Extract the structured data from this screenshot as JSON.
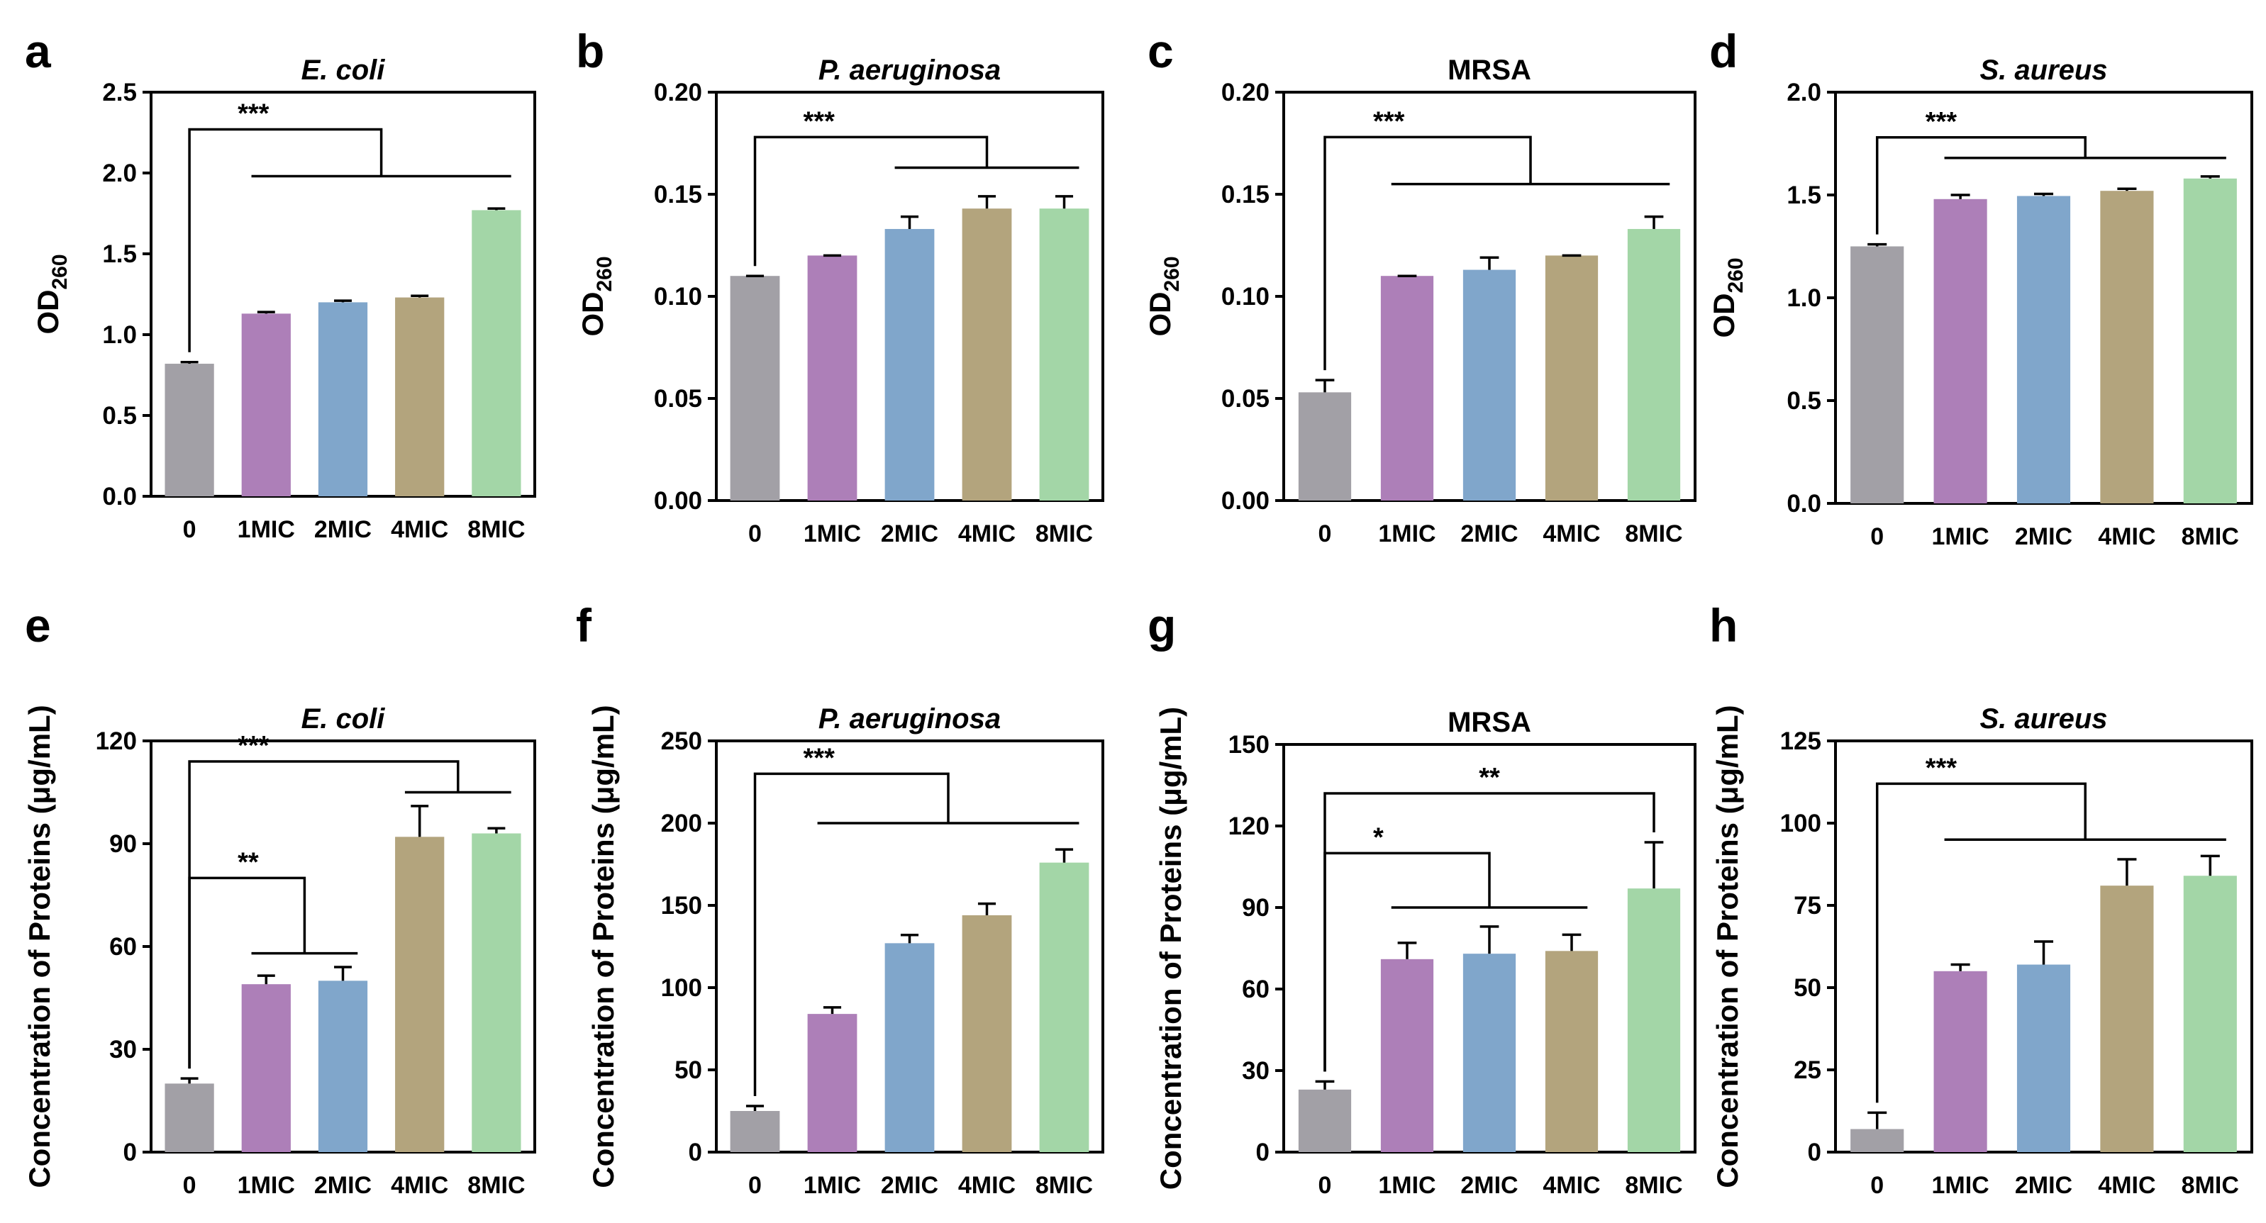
{
  "colors": [
    "#a2a0a6",
    "#ad7fb8",
    "#80a6cb",
    "#b3a47d",
    "#a3d6a7"
  ],
  "chart_data": [
    {
      "type": "bar",
      "panel": "a",
      "title": "E. coli",
      "title_italic": true,
      "ylabel": "OD",
      "ylabel_sub": "260",
      "categories": [
        "0",
        "1MIC",
        "2MIC",
        "4MIC",
        "8MIC"
      ],
      "values": [
        0.82,
        1.13,
        1.2,
        1.23,
        1.77
      ],
      "errors": [
        0.01,
        0.01,
        0.01,
        0.01,
        0.01
      ],
      "ylim": [
        0,
        2.5
      ],
      "yticks": [
        {
          "v": 0,
          "label": "0.0"
        },
        {
          "v": 0.5,
          "label": "0.5"
        },
        {
          "v": 1,
          "label": "1.0"
        },
        {
          "v": 1.5,
          "label": "1.5"
        },
        {
          "v": 2,
          "label": "2.0"
        },
        {
          "v": 2.5,
          "label": "2.5"
        }
      ],
      "annotations": [
        {
          "label": "***",
          "from": 0,
          "to": [
            1,
            4
          ],
          "y": 2.27,
          "yg": 1.98
        }
      ]
    },
    {
      "type": "bar",
      "panel": "b",
      "title": "P. aeruginosa",
      "title_italic": true,
      "ylabel": "OD",
      "ylabel_sub": "260",
      "categories": [
        "0",
        "1MIC",
        "2MIC",
        "4MIC",
        "8MIC"
      ],
      "values": [
        0.11,
        0.12,
        0.133,
        0.143,
        0.143
      ],
      "errors": [
        0,
        0,
        0.006,
        0.006,
        0.006
      ],
      "ylim": [
        0,
        0.2
      ],
      "yticks": [
        {
          "v": 0,
          "label": "0.00"
        },
        {
          "v": 0.05,
          "label": "0.05"
        },
        {
          "v": 0.1,
          "label": "0.10"
        },
        {
          "v": 0.15,
          "label": "0.15"
        },
        {
          "v": 0.2,
          "label": "0.20"
        }
      ],
      "annotations": [
        {
          "label": "***",
          "from": 0,
          "to": [
            2,
            4
          ],
          "y": 0.178,
          "yg": 0.163
        }
      ]
    },
    {
      "type": "bar",
      "panel": "c",
      "title": "MRSA",
      "title_italic": false,
      "ylabel": "OD",
      "ylabel_sub": "260",
      "categories": [
        "0",
        "1MIC",
        "2MIC",
        "4MIC",
        "8MIC"
      ],
      "values": [
        0.053,
        0.11,
        0.113,
        0.12,
        0.133
      ],
      "errors": [
        0.006,
        0,
        0.006,
        0,
        0.006
      ],
      "ylim": [
        0,
        0.2
      ],
      "yticks": [
        {
          "v": 0,
          "label": "0.00"
        },
        {
          "v": 0.05,
          "label": "0.05"
        },
        {
          "v": 0.1,
          "label": "0.10"
        },
        {
          "v": 0.15,
          "label": "0.15"
        },
        {
          "v": 0.2,
          "label": "0.20"
        }
      ],
      "annotations": [
        {
          "label": "***",
          "from": 0,
          "to": [
            1,
            4
          ],
          "y": 0.178,
          "yg": 0.155
        }
      ]
    },
    {
      "type": "bar",
      "panel": "d",
      "title": "S. aureus",
      "title_italic": true,
      "ylabel": "OD",
      "ylabel_sub": "260",
      "categories": [
        "0",
        "1MIC",
        "2MIC",
        "4MIC",
        "8MIC"
      ],
      "values": [
        1.25,
        1.48,
        1.495,
        1.52,
        1.58
      ],
      "errors": [
        0.01,
        0.02,
        0.01,
        0.01,
        0.01
      ],
      "ylim": [
        0,
        2.0
      ],
      "yticks": [
        {
          "v": 0,
          "label": "0.0"
        },
        {
          "v": 0.5,
          "label": "0.5"
        },
        {
          "v": 1,
          "label": "1.0"
        },
        {
          "v": 1.5,
          "label": "1.5"
        },
        {
          "v": 2,
          "label": "2.0"
        }
      ],
      "annotations": [
        {
          "label": "***",
          "from": 0,
          "to": [
            1,
            4
          ],
          "y": 1.78,
          "yg": 1.68
        }
      ]
    },
    {
      "type": "bar",
      "panel": "e",
      "title": "E. coli",
      "title_italic": true,
      "ylabel": "Concentration of Proteins (μg/mL)",
      "ylabel_sub": "",
      "categories": [
        "0",
        "1MIC",
        "2MIC",
        "4MIC",
        "8MIC"
      ],
      "values": [
        20,
        49,
        50,
        92,
        93
      ],
      "errors": [
        1.5,
        2.5,
        4,
        9,
        1.5
      ],
      "ylim": [
        0,
        120
      ],
      "yticks": [
        {
          "v": 0,
          "label": "0"
        },
        {
          "v": 30,
          "label": "30"
        },
        {
          "v": 60,
          "label": "60"
        },
        {
          "v": 90,
          "label": "90"
        },
        {
          "v": 120,
          "label": "120"
        }
      ],
      "annotations": [
        {
          "label": "***",
          "from": 0,
          "to": [
            3,
            4
          ],
          "y": 114,
          "yg": 105
        },
        {
          "label": "**",
          "from": 0,
          "to": [
            1,
            2
          ],
          "y": 80,
          "yg": 58
        }
      ]
    },
    {
      "type": "bar",
      "panel": "f",
      "title": "P. aeruginosa",
      "title_italic": true,
      "ylabel": "Concentration of Proteins (μg/mL)",
      "ylabel_sub": "",
      "categories": [
        "0",
        "1MIC",
        "2MIC",
        "4MIC",
        "8MIC"
      ],
      "values": [
        25,
        84,
        127,
        144,
        176
      ],
      "errors": [
        3,
        4,
        5,
        7,
        8
      ],
      "ylim": [
        0,
        250
      ],
      "yticks": [
        {
          "v": 0,
          "label": "0"
        },
        {
          "v": 50,
          "label": "50"
        },
        {
          "v": 100,
          "label": "100"
        },
        {
          "v": 150,
          "label": "150"
        },
        {
          "v": 200,
          "label": "200"
        },
        {
          "v": 250,
          "label": "250"
        }
      ],
      "annotations": [
        {
          "label": "***",
          "from": 0,
          "to": [
            1,
            4
          ],
          "y": 230,
          "yg": 200
        }
      ]
    },
    {
      "type": "bar",
      "panel": "g",
      "title": "MRSA",
      "title_italic": false,
      "ylabel": "Concentration of Proteins (μg/mL)",
      "ylabel_sub": "",
      "categories": [
        "0",
        "1MIC",
        "2MIC",
        "4MIC",
        "8MIC"
      ],
      "values": [
        23,
        71,
        73,
        74,
        97
      ],
      "errors": [
        3,
        6,
        10,
        6,
        17
      ],
      "ylim": [
        0,
        150
      ],
      "yticks": [
        {
          "v": 0,
          "label": "0"
        },
        {
          "v": 30,
          "label": "30"
        },
        {
          "v": 60,
          "label": "60"
        },
        {
          "v": 90,
          "label": "90"
        },
        {
          "v": 120,
          "label": "120"
        },
        {
          "v": 150,
          "label": "150"
        }
      ],
      "annotations": [
        {
          "label": "**",
          "from": 0,
          "to": 4,
          "y": 132,
          "yg": null
        },
        {
          "label": "*",
          "from": 0,
          "to": [
            1,
            3
          ],
          "y": 110,
          "yg": 90
        }
      ]
    },
    {
      "type": "bar",
      "panel": "h",
      "title": "S. aureus",
      "title_italic": true,
      "ylabel": "Concentration of Proteins (μg/mL)",
      "ylabel_sub": "",
      "categories": [
        "0",
        "1MIC",
        "2MIC",
        "4MIC",
        "8MIC"
      ],
      "values": [
        7,
        55,
        57,
        81,
        84
      ],
      "errors": [
        5,
        2,
        7,
        8,
        6
      ],
      "ylim": [
        0,
        125
      ],
      "yticks": [
        {
          "v": 0,
          "label": "0"
        },
        {
          "v": 25,
          "label": "25"
        },
        {
          "v": 50,
          "label": "50"
        },
        {
          "v": 75,
          "label": "75"
        },
        {
          "v": 100,
          "label": "100"
        },
        {
          "v": 125,
          "label": "125"
        }
      ],
      "annotations": [
        {
          "label": "***",
          "from": 0,
          "to": [
            1,
            4
          ],
          "y": 112,
          "yg": 95
        }
      ]
    }
  ]
}
